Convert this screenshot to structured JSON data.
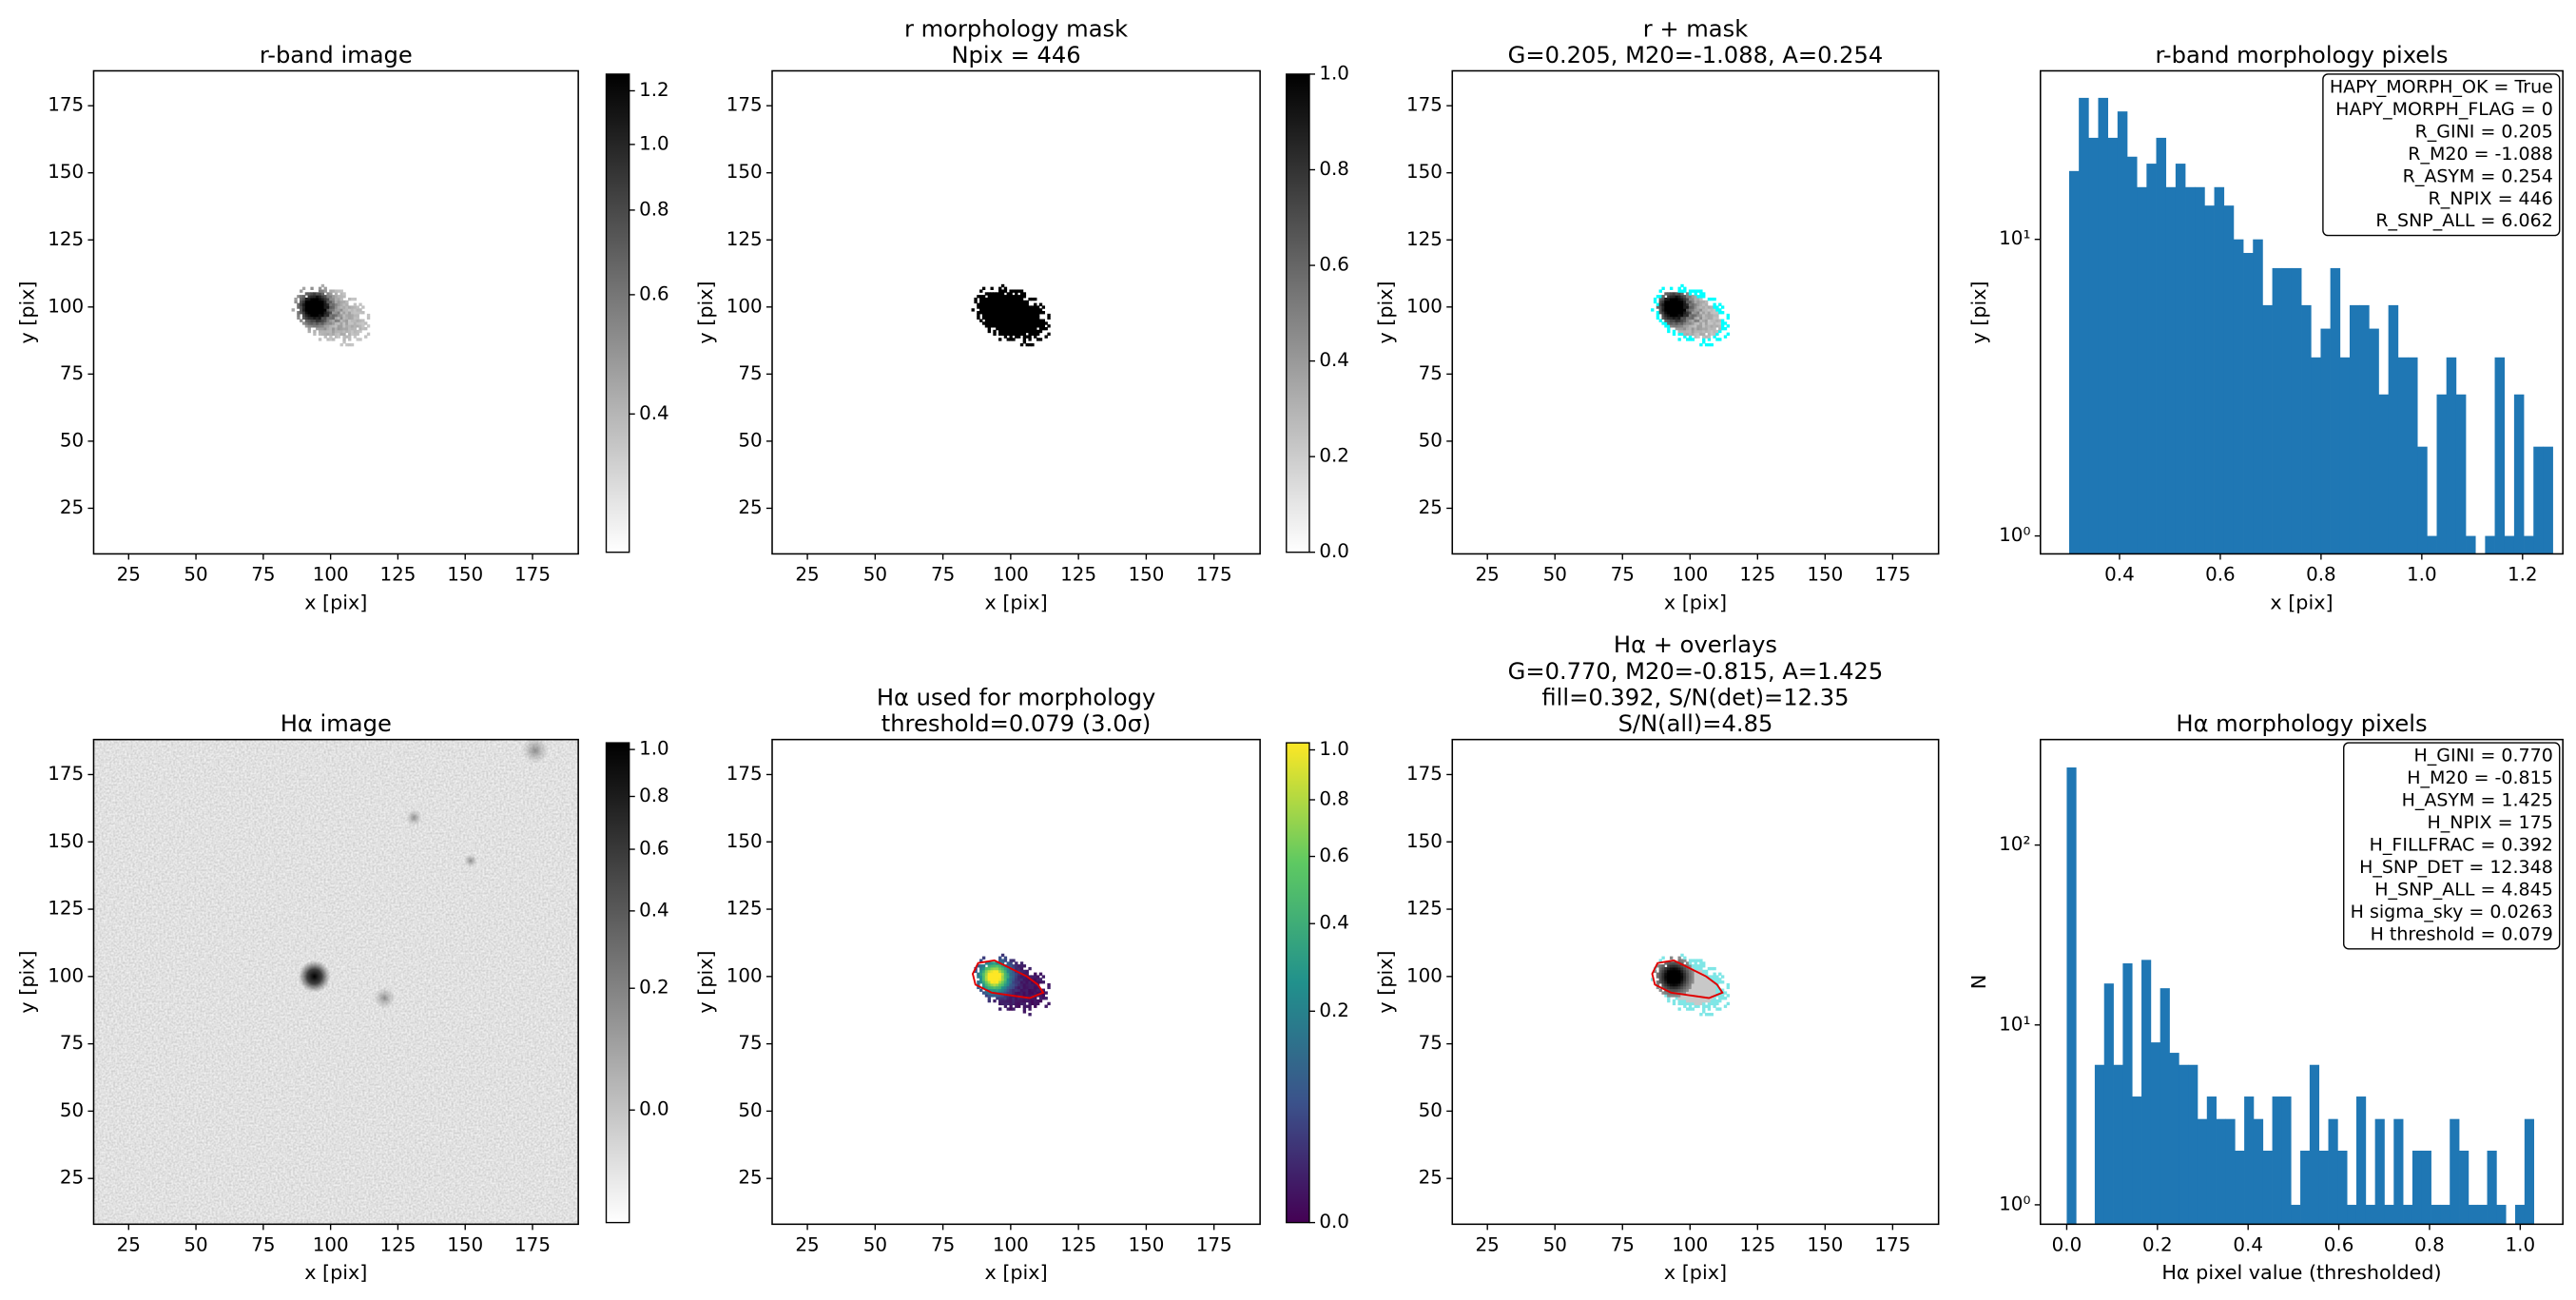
{
  "chart_data": [
    {
      "type": "image",
      "title": [
        "r-band image"
      ],
      "xlabel": "x [pix]",
      "ylabel": "y [pix]",
      "xlim": [
        12,
        192
      ],
      "ylim": [
        8,
        188
      ],
      "xticks": [
        25,
        50,
        75,
        100,
        125,
        150,
        175
      ],
      "yticks": [
        25,
        50,
        75,
        100,
        125,
        150,
        175
      ],
      "cmap": "gray_r",
      "colorbar": {
        "clim": [
          0.25,
          1.27
        ],
        "scale": "log",
        "ticks": [
          0.4,
          0.6,
          0.8,
          {
            "value": 1,
            "label": "1.0"
          },
          1.2
        ]
      }
    },
    {
      "type": "image",
      "title": [
        "r morphology mask",
        "Npix = 446"
      ],
      "xlabel": "x [pix]",
      "ylabel": "y [pix]",
      "xlim": [
        12,
        192
      ],
      "ylim": [
        8,
        188
      ],
      "xticks": [
        25,
        50,
        75,
        100,
        125,
        150,
        175
      ],
      "yticks": [
        25,
        50,
        75,
        100,
        125,
        150,
        175
      ],
      "cmap": "gray_r",
      "colorbar": {
        "clim": [
          0,
          1
        ],
        "scale": "linear",
        "ticks": [
          {
            "value": 0,
            "label": "0.0"
          },
          0.2,
          0.4,
          0.6,
          0.8,
          {
            "value": 1,
            "label": "1.0"
          }
        ]
      }
    },
    {
      "type": "image",
      "title": [
        "r + mask",
        "G=0.205, M20=-1.088, A=0.254"
      ],
      "xlabel": "x [pix]",
      "ylabel": "y [pix]",
      "xlim": [
        12,
        192
      ],
      "ylim": [
        8,
        188
      ],
      "xticks": [
        25,
        50,
        75,
        100,
        125,
        150,
        175
      ],
      "yticks": [
        25,
        50,
        75,
        100,
        125,
        150,
        175
      ],
      "cmap": "gray_r"
    },
    {
      "type": "histogram",
      "title": [
        "r-band morphology pixels"
      ],
      "xlabel": "x [pix]",
      "ylabel": "y [pix]",
      "color": "#1f77b4",
      "bins": [
        0.3,
        0.3192,
        0.3384,
        0.3576,
        0.3768,
        0.396,
        0.4152,
        0.4344,
        0.4536,
        0.4728,
        0.492,
        0.5112,
        0.5304,
        0.5496,
        0.5688,
        0.588,
        0.6072,
        0.6264,
        0.6456,
        0.6648,
        0.684,
        0.7032,
        0.7224,
        0.7416,
        0.7608,
        0.78,
        0.7992,
        0.8184,
        0.8376,
        0.8568,
        0.876,
        0.8952,
        0.9144,
        0.9336,
        0.9528,
        0.972,
        0.9912,
        1.0104,
        1.0296,
        1.0488,
        1.068,
        1.0872,
        1.1064,
        1.1256,
        1.1448,
        1.164,
        1.1832,
        1.2024,
        1.2216,
        1.2408,
        1.26
      ],
      "values": [
        17,
        30,
        22,
        30,
        22,
        27,
        19,
        15,
        18,
        22,
        15,
        18,
        15,
        15,
        13,
        15,
        13,
        10,
        9,
        10,
        6,
        8,
        8,
        8,
        6,
        4,
        5,
        8,
        4,
        6,
        6,
        5,
        3,
        6,
        4,
        4,
        2,
        1,
        3,
        4,
        3,
        1,
        0,
        1,
        4,
        1,
        3,
        1,
        2,
        2
      ],
      "xlim": [
        0.243,
        1.28
      ],
      "ylim": [
        0.87,
        37
      ],
      "yscale": "log",
      "xticks": [
        0.4,
        0.6,
        0.8,
        {
          "value": 1,
          "label": "1.0"
        },
        1.2
      ],
      "yticks": [
        {
          "value": 1,
          "label": "10⁰"
        },
        {
          "value": 10,
          "label": "10¹"
        }
      ],
      "annotation_lines": [
        "HAPY_MORPH_OK = True",
        "HAPY_MORPH_FLAG = 0",
        "R_GINI = 0.205",
        "R_M20 = -1.088",
        "R_ASYM = 0.254",
        "R_NPIX = 446",
        "R_SNP_ALL = 6.062"
      ]
    },
    {
      "type": "image",
      "title": [
        "Hα image"
      ],
      "xlabel": "x [pix]",
      "ylabel": "y [pix]",
      "xlim": [
        12,
        192
      ],
      "ylim": [
        8,
        188
      ],
      "xticks": [
        25,
        50,
        75,
        100,
        125,
        150,
        175
      ],
      "yticks": [
        25,
        50,
        75,
        100,
        125,
        150,
        175
      ],
      "cmap": "gray_r",
      "colorbar": {
        "clim": [
          -0.06,
          1.03
        ],
        "scale": "sqrt",
        "ticks": [
          {
            "value": 0,
            "label": "0.0"
          },
          0.2,
          0.4,
          0.6,
          0.8,
          {
            "value": 1,
            "label": "1.0"
          }
        ]
      }
    },
    {
      "type": "image",
      "title": [
        "Hα used for morphology",
        "threshold=0.079 (3.0σ)"
      ],
      "xlabel": "x [pix]",
      "ylabel": "y [pix]",
      "xlim": [
        12,
        192
      ],
      "ylim": [
        8,
        188
      ],
      "xticks": [
        25,
        50,
        75,
        100,
        125,
        150,
        175
      ],
      "yticks": [
        25,
        50,
        75,
        100,
        125,
        150,
        175
      ],
      "cmap": "viridis",
      "colorbar": {
        "clim": [
          0,
          1.03
        ],
        "scale": "sqrt",
        "ticks": [
          {
            "value": 0,
            "label": "0.0"
          },
          0.2,
          0.4,
          0.6,
          0.8,
          {
            "value": 1,
            "label": "1.0"
          }
        ]
      }
    },
    {
      "type": "image",
      "title": [
        "Hα + overlays",
        "G=0.770, M20=-0.815, A=1.425",
        "fill=0.392, S/N(det)=12.35",
        "S/N(all)=4.85"
      ],
      "xlabel": "x [pix]",
      "ylabel": "y [pix]",
      "xlim": [
        12,
        192
      ],
      "ylim": [
        8,
        188
      ],
      "xticks": [
        25,
        50,
        75,
        100,
        125,
        150,
        175
      ],
      "yticks": [
        25,
        50,
        75,
        100,
        125,
        150,
        175
      ],
      "cmap": "gray_r"
    },
    {
      "type": "histogram",
      "title": [
        "Hα morphology pixels"
      ],
      "xlabel": "Hα pixel value (thresholded)",
      "ylabel": "N",
      "color": "#1f77b4",
      "bins": [
        0,
        0.0206,
        0.0412,
        0.0618,
        0.0824,
        0.103,
        0.1236,
        0.1442,
        0.1648,
        0.1854,
        0.206,
        0.2266,
        0.2472,
        0.2678,
        0.2884,
        0.309,
        0.3296,
        0.3502,
        0.3708,
        0.3914,
        0.412,
        0.4326,
        0.4532,
        0.4738,
        0.4944,
        0.515,
        0.5356,
        0.5562,
        0.5768,
        0.5974,
        0.618,
        0.6386,
        0.6592,
        0.6798,
        0.7004,
        0.721,
        0.7416,
        0.7622,
        0.7828,
        0.8034,
        0.824,
        0.8446,
        0.8652,
        0.8858,
        0.9064,
        0.927,
        0.9476,
        0.9682,
        0.9888,
        1.0094,
        1.03
      ],
      "values": [
        270,
        0,
        0,
        6,
        17,
        6,
        22,
        4,
        23,
        8,
        16,
        7,
        6,
        6,
        3,
        4,
        3,
        3,
        2,
        4,
        3,
        2,
        4,
        4,
        1,
        2,
        6,
        2,
        3,
        2,
        1,
        4,
        1,
        3,
        1,
        3,
        1,
        2,
        2,
        1,
        1,
        3,
        2,
        1,
        1,
        2,
        1,
        0,
        1,
        3
      ],
      "xlim": [
        -0.058,
        1.094
      ],
      "ylim": [
        0.78,
        386
      ],
      "yscale": "log",
      "xticks": [
        {
          "value": 0,
          "label": "0.0"
        },
        0.2,
        0.4,
        0.6,
        0.8,
        {
          "value": 1,
          "label": "1.0"
        }
      ],
      "yticks": [
        {
          "value": 1,
          "label": "10⁰"
        },
        {
          "value": 10,
          "label": "10¹"
        },
        {
          "value": 100,
          "label": "10²"
        }
      ],
      "annotation_lines": [
        "H_GINI = 0.770",
        "H_M20 = -0.815",
        "H_ASYM = 1.425",
        "H_NPIX = 175",
        "H_FILLFRAC = 0.392",
        "H_SNP_DET = 12.348",
        "H_SNP_ALL = 4.845",
        "H sigma_sky = 0.0263",
        "H threshold = 0.079"
      ]
    }
  ]
}
